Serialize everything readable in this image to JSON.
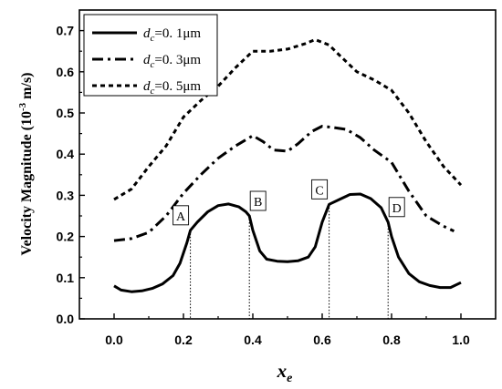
{
  "chart_data": {
    "type": "line",
    "xlabel_main": "x",
    "xlabel_sub": "e",
    "ylabel": {
      "main": "Velocity Magnitude (",
      "num": "10",
      "exp": "-3",
      "unit": " m/s",
      "close": ")"
    },
    "xlim": [
      -0.1,
      1.1
    ],
    "ylim": [
      0.0,
      0.75
    ],
    "x_ticks": [
      "0.0",
      "0.2",
      "0.4",
      "0.6",
      "0.8",
      "1.0"
    ],
    "y_ticks": [
      "0.0",
      "0.1",
      "0.2",
      "0.3",
      "0.4",
      "0.5",
      "0.6",
      "0.7"
    ],
    "legend_position": "top-left",
    "series": [
      {
        "name_prefix": "d",
        "name_sub": "c",
        "name_value": "=0. 1μm",
        "style": "solid",
        "color": "#000000",
        "points": [
          [
            0.0,
            0.08
          ],
          [
            0.02,
            0.07
          ],
          [
            0.05,
            0.066
          ],
          [
            0.08,
            0.068
          ],
          [
            0.11,
            0.074
          ],
          [
            0.14,
            0.085
          ],
          [
            0.17,
            0.105
          ],
          [
            0.19,
            0.135
          ],
          [
            0.21,
            0.185
          ],
          [
            0.22,
            0.215
          ],
          [
            0.24,
            0.235
          ],
          [
            0.27,
            0.26
          ],
          [
            0.3,
            0.275
          ],
          [
            0.33,
            0.279
          ],
          [
            0.36,
            0.272
          ],
          [
            0.38,
            0.26
          ],
          [
            0.39,
            0.25
          ],
          [
            0.4,
            0.215
          ],
          [
            0.42,
            0.165
          ],
          [
            0.44,
            0.145
          ],
          [
            0.47,
            0.14
          ],
          [
            0.5,
            0.139
          ],
          [
            0.53,
            0.141
          ],
          [
            0.56,
            0.15
          ],
          [
            0.58,
            0.175
          ],
          [
            0.6,
            0.235
          ],
          [
            0.62,
            0.278
          ],
          [
            0.65,
            0.29
          ],
          [
            0.68,
            0.302
          ],
          [
            0.71,
            0.303
          ],
          [
            0.74,
            0.292
          ],
          [
            0.77,
            0.27
          ],
          [
            0.79,
            0.235
          ],
          [
            0.8,
            0.2
          ],
          [
            0.82,
            0.15
          ],
          [
            0.85,
            0.11
          ],
          [
            0.88,
            0.09
          ],
          [
            0.91,
            0.081
          ],
          [
            0.94,
            0.076
          ],
          [
            0.97,
            0.076
          ],
          [
            1.0,
            0.088
          ]
        ]
      },
      {
        "name_prefix": "d",
        "name_sub": "c",
        "name_value": "=0. 3μm",
        "style": "dashdot",
        "color": "#000000",
        "points": [
          [
            0.0,
            0.19
          ],
          [
            0.05,
            0.195
          ],
          [
            0.1,
            0.21
          ],
          [
            0.15,
            0.25
          ],
          [
            0.2,
            0.305
          ],
          [
            0.25,
            0.35
          ],
          [
            0.3,
            0.39
          ],
          [
            0.35,
            0.42
          ],
          [
            0.4,
            0.445
          ],
          [
            0.43,
            0.43
          ],
          [
            0.46,
            0.41
          ],
          [
            0.5,
            0.407
          ],
          [
            0.53,
            0.425
          ],
          [
            0.57,
            0.455
          ],
          [
            0.6,
            0.468
          ],
          [
            0.63,
            0.465
          ],
          [
            0.67,
            0.46
          ],
          [
            0.71,
            0.44
          ],
          [
            0.75,
            0.41
          ],
          [
            0.8,
            0.38
          ],
          [
            0.85,
            0.31
          ],
          [
            0.9,
            0.25
          ],
          [
            0.95,
            0.225
          ],
          [
            0.98,
            0.213
          ]
        ]
      },
      {
        "name_prefix": "d",
        "name_sub": "c",
        "name_value": "=0. 5μm",
        "style": "dashed",
        "color": "#000000",
        "points": [
          [
            0.0,
            0.29
          ],
          [
            0.05,
            0.315
          ],
          [
            0.1,
            0.37
          ],
          [
            0.15,
            0.42
          ],
          [
            0.2,
            0.49
          ],
          [
            0.25,
            0.53
          ],
          [
            0.3,
            0.565
          ],
          [
            0.35,
            0.61
          ],
          [
            0.4,
            0.65
          ],
          [
            0.45,
            0.65
          ],
          [
            0.5,
            0.655
          ],
          [
            0.55,
            0.668
          ],
          [
            0.58,
            0.678
          ],
          [
            0.62,
            0.665
          ],
          [
            0.65,
            0.64
          ],
          [
            0.7,
            0.6
          ],
          [
            0.75,
            0.58
          ],
          [
            0.8,
            0.555
          ],
          [
            0.85,
            0.5
          ],
          [
            0.9,
            0.43
          ],
          [
            0.95,
            0.37
          ],
          [
            1.0,
            0.325
          ]
        ]
      }
    ],
    "annotations": [
      {
        "label": "A",
        "x": 0.22,
        "y": 0.215,
        "side": "left"
      },
      {
        "label": "B",
        "x": 0.39,
        "y": 0.25,
        "side": "right"
      },
      {
        "label": "C",
        "x": 0.62,
        "y": 0.278,
        "side": "left"
      },
      {
        "label": "D",
        "x": 0.79,
        "y": 0.235,
        "side": "right"
      }
    ]
  }
}
